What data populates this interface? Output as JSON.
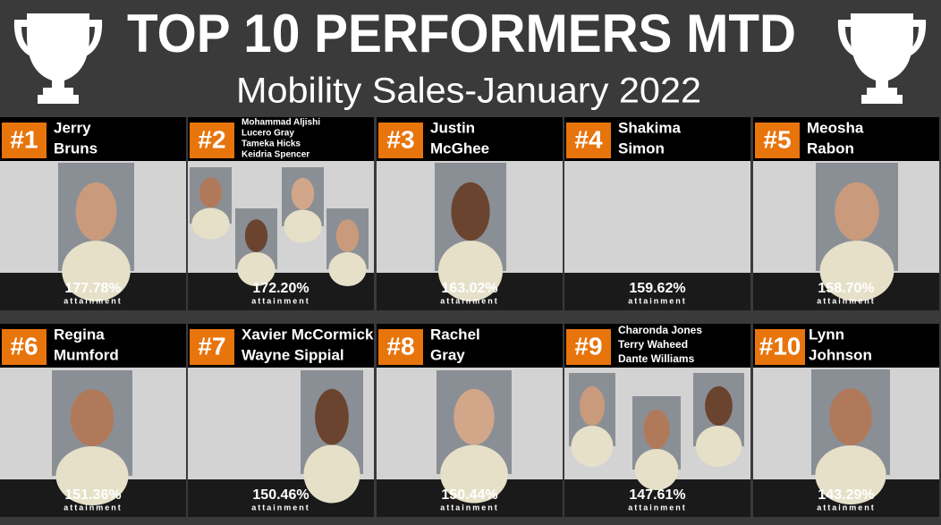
{
  "header": {
    "title": "TOP 10 PERFORMERS MTD",
    "subtitle": "Mobility Sales-January 2022"
  },
  "cards": [
    {
      "rank": "#1",
      "names": [
        "Jerry",
        "Bruns"
      ],
      "attainment": "177.78%",
      "label": "attainment"
    },
    {
      "rank": "#2",
      "names": [
        "Mohammad Aljishi",
        "Lucero Gray",
        "Tameka Hicks",
        "Keidria Spencer"
      ],
      "attainment": "172.20%",
      "label": "attainment"
    },
    {
      "rank": "#3",
      "names": [
        "Justin",
        "McGhee"
      ],
      "attainment": "163.02%",
      "label": "attainment"
    },
    {
      "rank": "#4",
      "names": [
        "Shakima",
        "Simon"
      ],
      "attainment": "159.62%",
      "label": "attainment"
    },
    {
      "rank": "#5",
      "names": [
        "Meosha",
        "Rabon"
      ],
      "attainment": "158.70%",
      "label": "attainment"
    },
    {
      "rank": "#6",
      "names": [
        "Regina",
        "Mumford"
      ],
      "attainment": "151.36%",
      "label": "attainment"
    },
    {
      "rank": "#7",
      "names": [
        "Xavier McCormick",
        "Wayne Sippial"
      ],
      "attainment": "150.46%",
      "label": "attainment"
    },
    {
      "rank": "#8",
      "names": [
        "Rachel",
        "Gray"
      ],
      "attainment": "150.44%",
      "label": "attainment"
    },
    {
      "rank": "#9",
      "names": [
        "Charonda Jones",
        "Terry Waheed",
        "Dante Williams"
      ],
      "attainment": "147.61%",
      "label": "attainment"
    },
    {
      "rank": "#10",
      "names": [
        "Lynn",
        "Johnson"
      ],
      "attainment": "143.29%",
      "label": "attainment"
    }
  ]
}
